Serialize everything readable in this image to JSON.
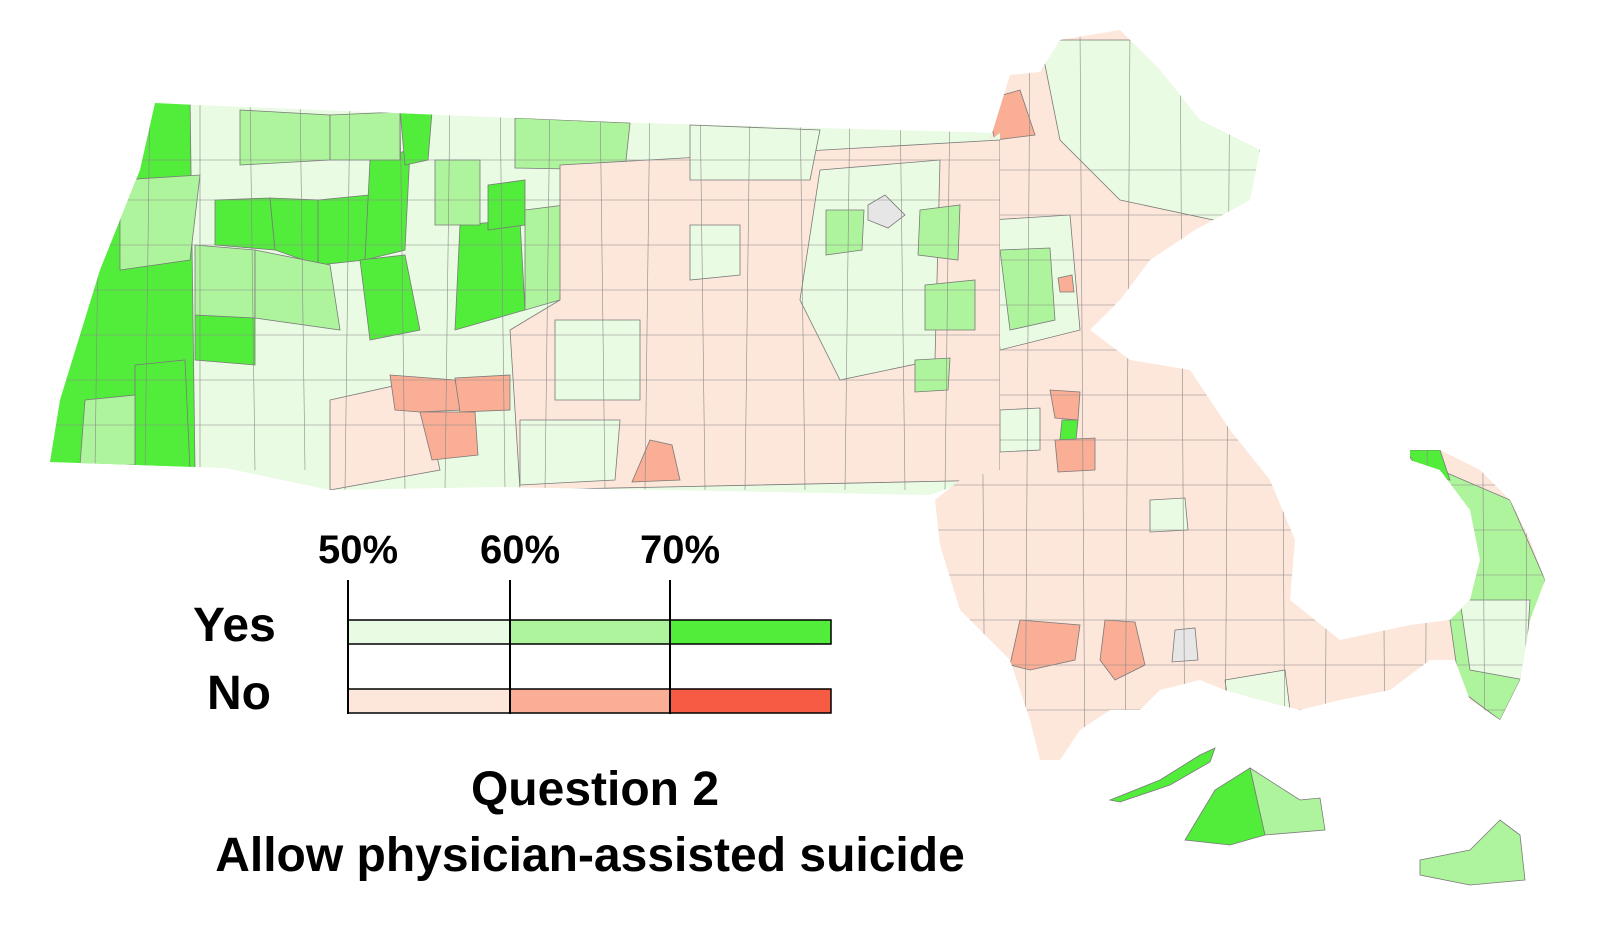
{
  "legend": {
    "ticks": [
      "50%",
      "60%",
      "70%"
    ],
    "rows": [
      {
        "label": "Yes",
        "colors": [
          "#e9fbe2",
          "#aef49c",
          "#52ec3b"
        ]
      },
      {
        "label": "No",
        "colors": [
          "#fde6da",
          "#f9ae95",
          "#f85b43"
        ]
      }
    ]
  },
  "caption": {
    "line1": "Question 2",
    "line2": "Allow physician-assisted suicide"
  },
  "colors": {
    "yes_light": "#e9fbe2",
    "yes_mid": "#aef49c",
    "yes_dark": "#52ec3b",
    "no_light": "#fde6da",
    "no_mid": "#f9ae95",
    "no_dark": "#f85b43",
    "no_data": "#e6e6e6",
    "border": "#7a7a7a"
  }
}
